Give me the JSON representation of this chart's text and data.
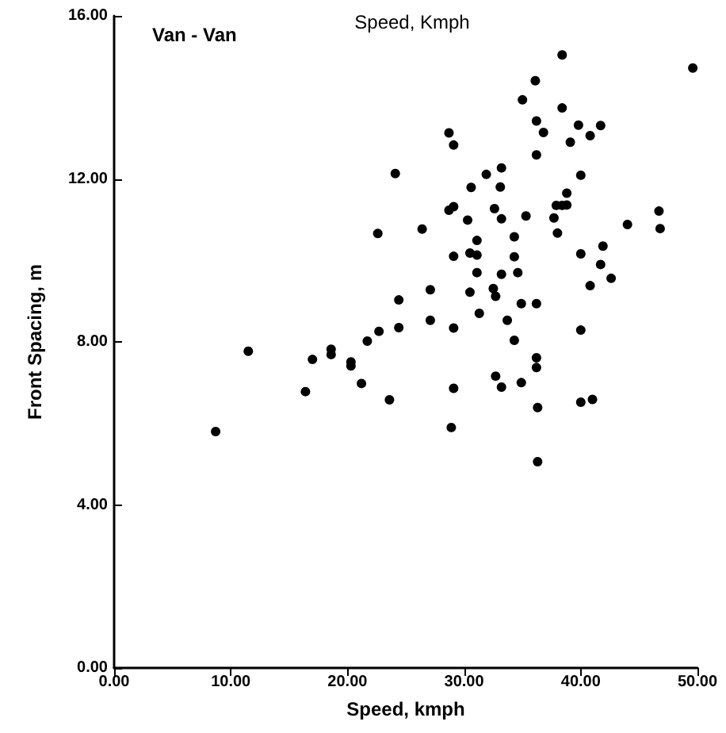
{
  "chart_data": {
    "type": "scatter",
    "title": "Speed, Kmph",
    "xlabel": "Speed, kmph",
    "ylabel": "Front Spacing, m",
    "annotations": [
      "Van - Van"
    ],
    "x": [
      8.7,
      11.5,
      16.4,
      17.0,
      18.6,
      18.6,
      20.3,
      20.3,
      21.2,
      21.7,
      22.7,
      22.6,
      24.1,
      23.6,
      24.4,
      24.4,
      38.4,
      49.6,
      36.1,
      35.0,
      38.4,
      28.7,
      36.2,
      36.8,
      39.8,
      41.7,
      40.8,
      39.1,
      29.1,
      36.2,
      33.2,
      31.9,
      40.0,
      30.6,
      33.1,
      38.8,
      37.9,
      38.4,
      38.8,
      28.7,
      29.1,
      32.6,
      30.3,
      33.2,
      35.3,
      37.7,
      44.0,
      46.7,
      46.8,
      26.4,
      38.0,
      34.3,
      31.1,
      41.9,
      29.1,
      30.5,
      31.1,
      34.3,
      40.0,
      41.7,
      31.1,
      33.2,
      34.6,
      42.6,
      40.8,
      27.1,
      30.5,
      32.5,
      32.7,
      34.9,
      36.2,
      31.3,
      27.1,
      29.1,
      33.7,
      40.0,
      34.3,
      36.2,
      36.2,
      32.7,
      33.2,
      34.9,
      29.1,
      28.9,
      36.3,
      40.0,
      41.0,
      36.3
    ],
    "values": [
      5.8,
      7.77,
      6.78,
      7.57,
      7.82,
      7.69,
      7.51,
      7.41,
      6.98,
      8.02,
      8.26,
      10.66,
      12.13,
      6.58,
      9.03,
      8.35,
      15.04,
      14.72,
      14.41,
      13.94,
      13.74,
      13.13,
      13.42,
      13.14,
      13.32,
      13.31,
      13.06,
      12.9,
      12.83,
      12.59,
      12.27,
      12.11,
      12.09,
      11.79,
      11.8,
      11.65,
      11.35,
      11.35,
      11.36,
      11.23,
      11.32,
      11.27,
      10.99,
      11.02,
      11.09,
      11.04,
      10.88,
      11.21,
      10.78,
      10.77,
      10.67,
      10.58,
      10.49,
      10.35,
      10.1,
      10.18,
      10.13,
      10.09,
      10.16,
      9.9,
      9.7,
      9.66,
      9.7,
      9.56,
      9.38,
      9.28,
      9.22,
      9.31,
      9.12,
      8.94,
      8.94,
      8.7,
      8.53,
      8.34,
      8.53,
      8.29,
      8.04,
      7.61,
      7.37,
      7.16,
      6.89,
      7.0,
      6.86,
      5.9,
      6.39,
      6.52,
      6.59,
      5.06
    ],
    "color": "#000000",
    "marker": "circle",
    "grid": false,
    "xlim": [
      0,
      50
    ],
    "xticks": [
      {
        "value": 0,
        "label": "0.00"
      },
      {
        "value": 10,
        "label": "10.00"
      },
      {
        "value": 20,
        "label": "20.00"
      },
      {
        "value": 30,
        "label": "30.00"
      },
      {
        "value": 40,
        "label": "40.00"
      },
      {
        "value": 50,
        "label": "50.00"
      }
    ],
    "ylim": [
      0,
      16
    ],
    "yticks": [
      {
        "value": 0,
        "label": "0.00"
      },
      {
        "value": 4,
        "label": "4.00"
      },
      {
        "value": 8,
        "label": "8.00"
      },
      {
        "value": 12,
        "label": "12.00"
      },
      {
        "value": 16,
        "label": "16.00"
      }
    ]
  }
}
